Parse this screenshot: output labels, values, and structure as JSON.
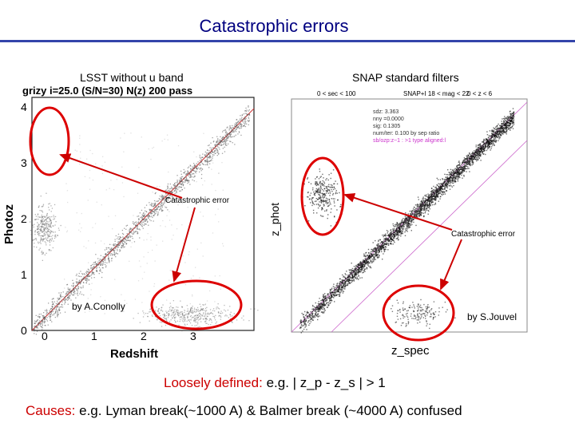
{
  "title": "Catastrophic errors",
  "left_panel": {
    "title": "LSST without u band",
    "header": "grizy  i=25.0 (S/N=30) N(z) 200  pass",
    "ylabel": "Photoz",
    "xlabel": "Redshift",
    "y_ticks": [
      "4",
      "3",
      "2",
      "1",
      "0"
    ],
    "x_ticks": [
      "0",
      "1",
      "2",
      "3"
    ],
    "credit": "by A.Conolly"
  },
  "right_panel": {
    "title": "SNAP standard filters",
    "ylabel": "z_phot",
    "xlabel": "z_spec",
    "credit": "by S.Jouvel",
    "header_left": "0 < sec < 100",
    "header_mid": "SNAP+I\n18 < mag < 22",
    "header_right": "0 < z < 6",
    "stats": [
      "sdz: 3.363",
      "nny =0.0000",
      "sig: 0.1305",
      "num/ter: 0.100 by sep ratio",
      "sb/ozp:z~1 : >1 type aligned:l"
    ]
  },
  "annotations": {
    "left_error": "Catastrophic error",
    "right_error": "Catastrophic error"
  },
  "loosely": {
    "label": "Loosely defined:",
    "text": "e.g.  | z_p - z_s | > 1"
  },
  "causes": {
    "label": "Causes:",
    "text": "e.g.  Lyman break(~1000 A) & Balmer break (~4000 A) confused"
  },
  "colors": {
    "title": "#000080",
    "accent": "#cc0000",
    "arrow": "#cc0000",
    "rule": "#3344aa"
  }
}
